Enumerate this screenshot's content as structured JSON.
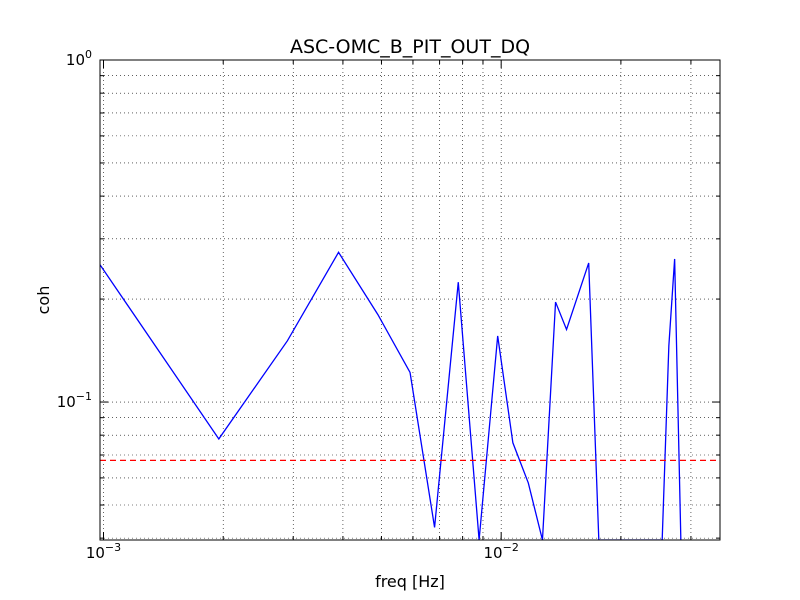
{
  "chart_data": {
    "type": "line",
    "title": "ASC-OMC_B_PIT_OUT_DQ",
    "xlabel": "freq [Hz]",
    "ylabel": "coh",
    "xscale": "log",
    "yscale": "log",
    "xlim": [
      0.00098,
      0.0355
    ],
    "ylim": [
      0.0395,
      1.0
    ],
    "grid": true,
    "x_ticks": [
      {
        "value": 0.001,
        "base": "10",
        "exp": "−3"
      },
      {
        "value": 0.01,
        "base": "10",
        "exp": "−2"
      }
    ],
    "y_ticks": [
      {
        "value": 0.1,
        "base": "10",
        "exp": "−1"
      },
      {
        "value": 1.0,
        "base": "10",
        "exp": "0"
      }
    ],
    "series": [
      {
        "color": "#0000ff",
        "style": "solid",
        "x": [
          0.00098,
          0.00195,
          0.0029,
          0.0039,
          0.0049,
          0.0059,
          0.0068,
          0.0078,
          0.0088,
          0.0098,
          0.0107,
          0.0117,
          0.0127,
          0.0137,
          0.0146,
          0.0166,
          0.0176,
          0.0254,
          0.0264,
          0.0273,
          0.0283
        ],
        "y": [
          0.252,
          0.078,
          0.151,
          0.274,
          0.18,
          0.122,
          0.043,
          0.224,
          0.0395,
          0.156,
          0.076,
          0.058,
          0.0395,
          0.196,
          0.163,
          0.255,
          0.0395,
          0.0395,
          0.146,
          0.262,
          0.0395
        ]
      },
      {
        "color": "#ff0000",
        "style": "dashed",
        "x": [
          0.00098,
          0.0355
        ],
        "y": [
          0.0675,
          0.0675
        ]
      }
    ]
  }
}
